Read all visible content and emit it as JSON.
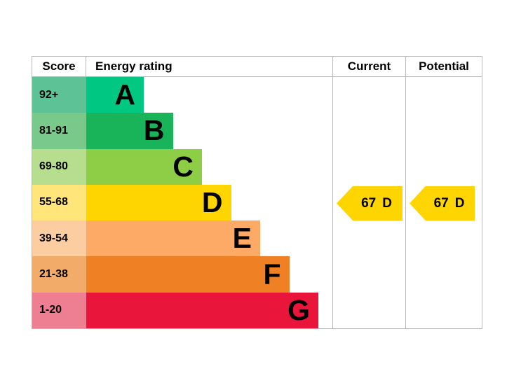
{
  "header": {
    "score": "Score",
    "rating": "Energy rating",
    "current": "Current",
    "potential": "Potential"
  },
  "bands": [
    {
      "letter": "A",
      "score_range": "92+",
      "bar_color": "#00c781",
      "score_color": "#5dc397"
    },
    {
      "letter": "B",
      "score_range": "81-91",
      "bar_color": "#19b459",
      "score_color": "#79c98b"
    },
    {
      "letter": "C",
      "score_range": "69-80",
      "bar_color": "#8dce46",
      "score_color": "#b7dd8e"
    },
    {
      "letter": "D",
      "score_range": "55-68",
      "bar_color": "#ffd500",
      "score_color": "#ffe57a"
    },
    {
      "letter": "E",
      "score_range": "39-54",
      "bar_color": "#fcaa65",
      "score_color": "#fbcda1"
    },
    {
      "letter": "F",
      "score_range": "21-38",
      "bar_color": "#ef8023",
      "score_color": "#f2ab69"
    },
    {
      "letter": "G",
      "score_range": "1-20",
      "bar_color": "#e9153b",
      "score_color": "#ee7e91"
    }
  ],
  "current": {
    "value": "67",
    "letter": "D",
    "arrow_color": "#ffd500",
    "band_index": 3
  },
  "potential": {
    "value": "67",
    "letter": "D",
    "arrow_color": "#ffd500",
    "band_index": 3
  },
  "border_color": "#b9b9b9",
  "chart_data": {
    "type": "bar",
    "title": "Energy rating",
    "orientation": "horizontal",
    "categories": [
      "A",
      "B",
      "C",
      "D",
      "E",
      "F",
      "G"
    ],
    "score_ranges": [
      "92+",
      "81-91",
      "69-80",
      "55-68",
      "39-54",
      "21-38",
      "1-20"
    ],
    "band_colors": [
      "#00c781",
      "#19b459",
      "#8dce46",
      "#ffd500",
      "#fcaa65",
      "#ef8023",
      "#e9153b"
    ],
    "columns": [
      "Score",
      "Energy rating",
      "Current",
      "Potential"
    ],
    "current": {
      "score": 67,
      "band": "D"
    },
    "potential": {
      "score": 67,
      "band": "D"
    },
    "legend_position": "none",
    "grid": false
  }
}
